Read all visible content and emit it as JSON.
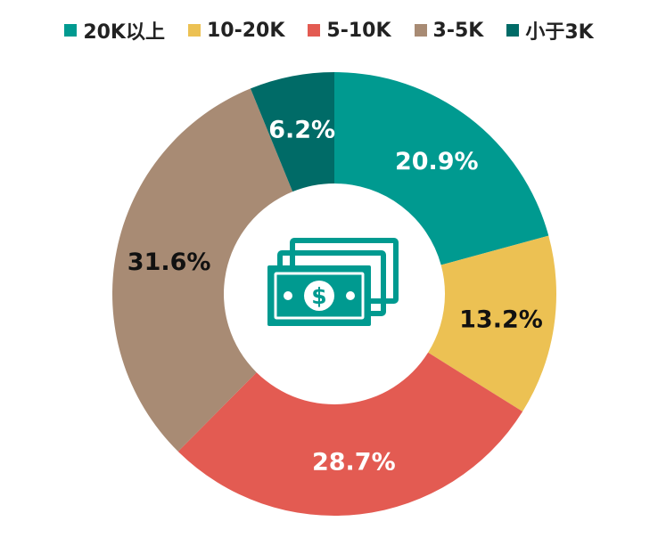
{
  "chart_data": {
    "type": "pie",
    "donut": true,
    "categories": [
      "20K以上",
      "10-20K",
      "5-10K",
      "3-5K",
      "小于3K"
    ],
    "values": [
      20.9,
      13.2,
      28.7,
      31.6,
      6.2
    ],
    "value_labels": [
      "20.9%",
      "13.2%",
      "28.7%",
      "31.6%",
      "6.2%"
    ],
    "colors": [
      "#009a90",
      "#ecc153",
      "#e35b52",
      "#a88b74",
      "#006b67"
    ],
    "label_colors": [
      "#ffffff",
      "#111111",
      "#ffffff",
      "#111111",
      "#ffffff"
    ],
    "start": "top",
    "direction": "clockwise",
    "legend_position": "top",
    "center_icon": "money-bills-icon",
    "icon_color": "#009a90"
  }
}
